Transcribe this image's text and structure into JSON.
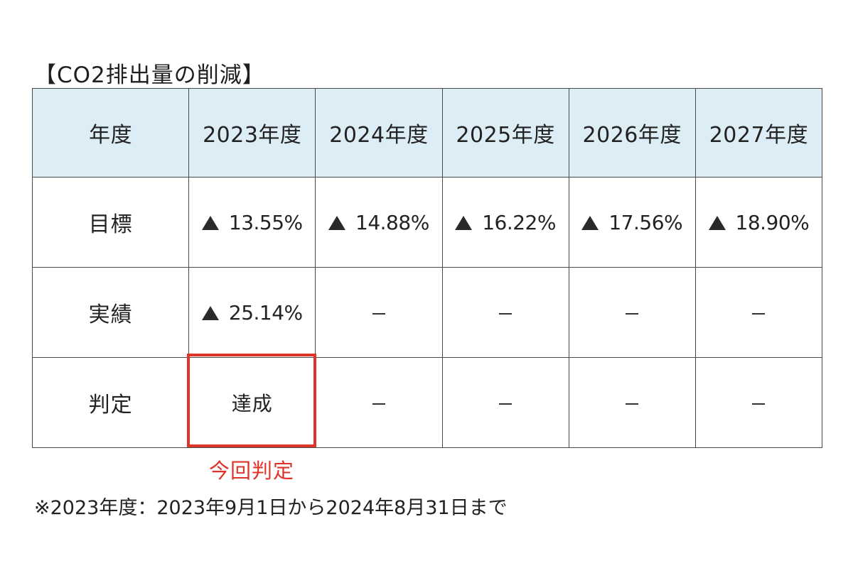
{
  "title": "【CO2排出量の削減】",
  "table": {
    "headers": [
      "年度",
      "2023年度",
      "2024年度",
      "2025年度",
      "2026年度",
      "2027年度"
    ],
    "rows": [
      {
        "label": "目標",
        "cells": [
          "13.55%",
          "14.88%",
          "16.22%",
          "17.56%",
          "18.90%"
        ],
        "marker": "▲"
      },
      {
        "label": "実績",
        "cells": [
          "25.14%",
          "－",
          "－",
          "－",
          "－"
        ],
        "marker": "▲"
      },
      {
        "label": "判定",
        "cells": [
          "達成",
          "－",
          "－",
          "－",
          "－"
        ]
      }
    ]
  },
  "highlight": {
    "label": "今回判定",
    "color": "#e0342b"
  },
  "footnote": "※2023年度：2023年9月1日から2024年8月31日まで",
  "colors": {
    "header_bg": "#dcedf5",
    "border": "#4a4a4a",
    "accent_red": "#e0342b"
  }
}
